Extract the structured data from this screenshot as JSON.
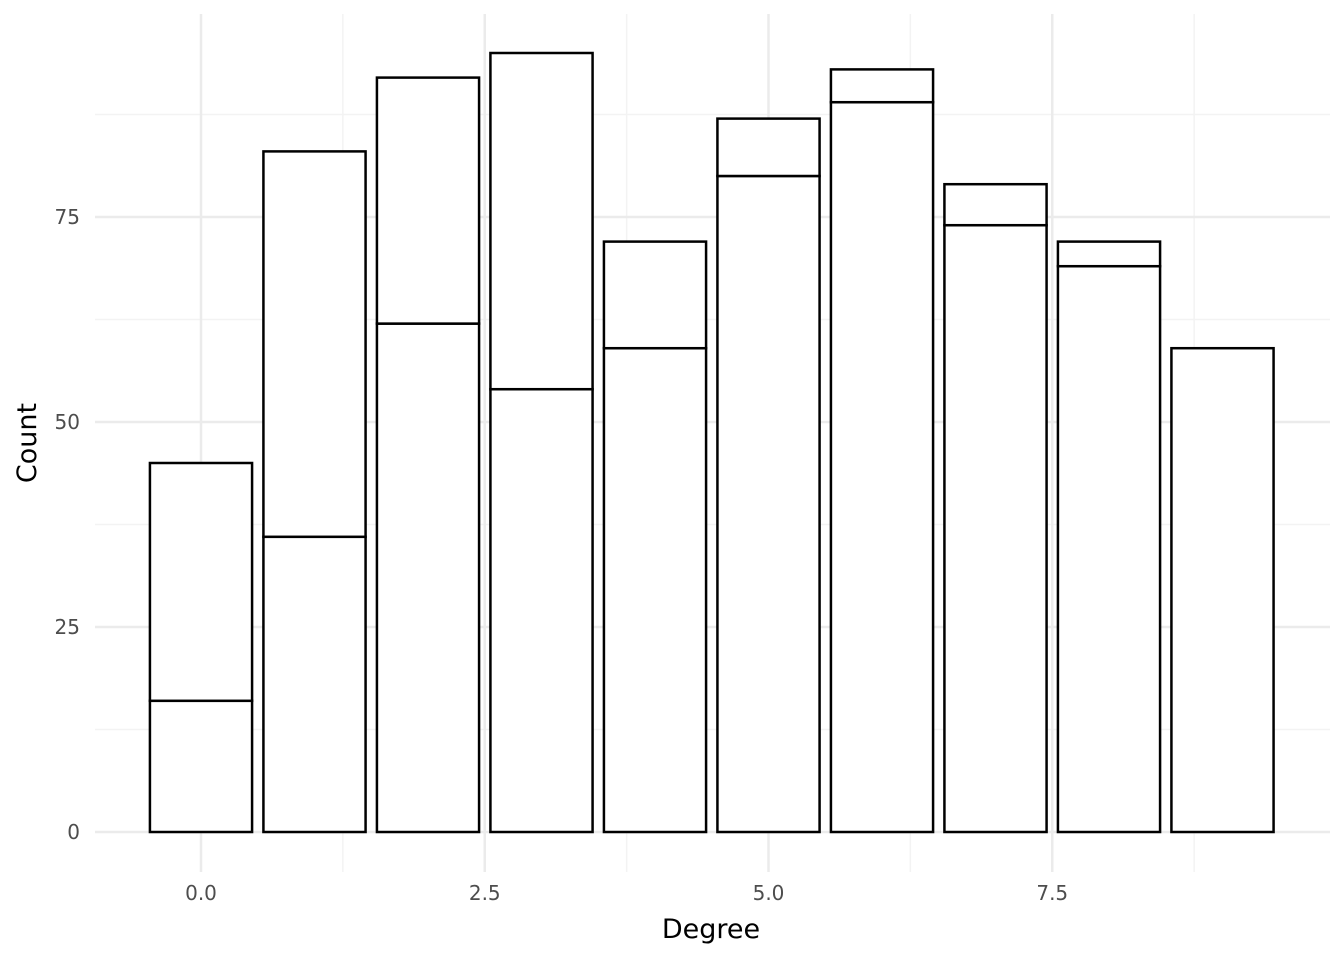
{
  "chart_data": {
    "type": "bar",
    "stacked": true,
    "title": "",
    "xlabel": "Degree",
    "ylabel": "Count",
    "x": [
      0,
      1,
      2,
      3,
      4,
      5,
      6,
      7,
      8,
      9
    ],
    "series": [
      {
        "values": [
          16,
          36,
          62,
          54,
          59,
          80,
          89,
          74,
          69,
          59
        ]
      },
      {
        "values": [
          29,
          47,
          30,
          41,
          13,
          7,
          4,
          5,
          3,
          0
        ]
      }
    ],
    "totals": [
      45,
      83,
      92,
      95,
      72,
      87,
      93,
      79,
      72,
      59
    ],
    "xlim": [
      -0.5,
      9.5
    ],
    "ylim": [
      0,
      97
    ],
    "x_ticks": [
      0.0,
      2.5,
      5.0,
      7.5
    ],
    "x_tick_labels": [
      "0.0",
      "2.5",
      "5.0",
      "7.5"
    ],
    "y_ticks": [
      0,
      25,
      50,
      75
    ],
    "y_tick_labels": [
      "0",
      "25",
      "50",
      "75"
    ],
    "bar_fill": "#ffffff",
    "bar_stroke": "#000000",
    "grid": true,
    "grid_color_major": "#ebebeb",
    "grid_color_minor": "#f3f3f3",
    "legend": "none"
  }
}
